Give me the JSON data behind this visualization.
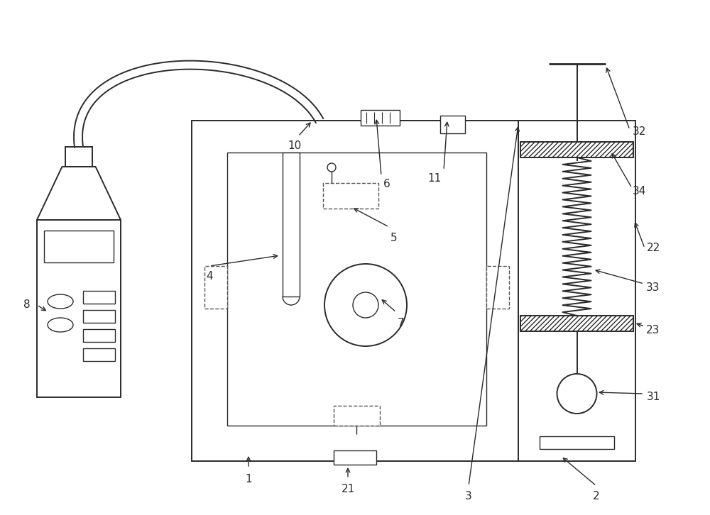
{
  "bg_color": "#ffffff",
  "line_color": "#2a2a2a",
  "fig_width": 10.0,
  "fig_height": 7.26,
  "lw_main": 1.4,
  "lw_thin": 1.0,
  "lw_thick": 2.0,
  "font_size": 11
}
